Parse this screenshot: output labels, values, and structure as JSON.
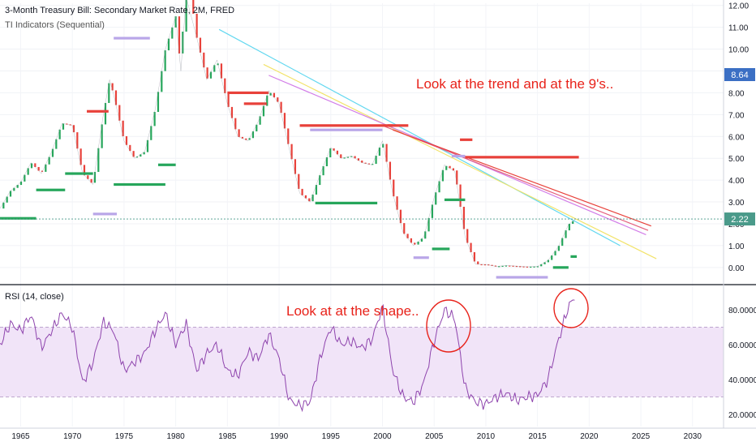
{
  "header": {
    "title": "3-Month Treasury Bill: Secondary Market Rate, 2M, FRED",
    "indicator": "TI Indicators (Sequential)",
    "rsi_title": "RSI (14, close)"
  },
  "annotations": {
    "trend_note": "Look at the trend and at the 9's..",
    "shape_note": "Look at at the shape.."
  },
  "colors": {
    "bull": "#26a65b",
    "bear": "#e8413a",
    "rsi": "#8e44ad",
    "annotation": "#e8221a",
    "price_badge": "#3b6fc4",
    "last_badge": "#4a9a8a"
  },
  "chart_data": [
    {
      "type": "line",
      "title": "3-Month Treasury Bill: Secondary Market Rate, 2M, FRED",
      "xlabel": "",
      "ylabel": "",
      "x_ticks": [
        "1965",
        "1970",
        "1975",
        "1980",
        "1985",
        "1990",
        "1995",
        "2000",
        "2005",
        "2010",
        "2015",
        "2020",
        "2025",
        "2030"
      ],
      "y_ticks": [
        "0.00",
        "1.00",
        "2.00",
        "3.00",
        "4.00",
        "5.00",
        "6.00",
        "7.00",
        "8.00",
        "9.00",
        "10.00",
        "11.00",
        "12.00"
      ],
      "xlim": [
        1963,
        2033
      ],
      "ylim": [
        -0.6,
        12.1
      ],
      "price_label": "8.64",
      "last_value_label": "2.22",
      "series": [
        {
          "x": [
            1963,
            1964,
            1965,
            1966,
            1967,
            1968,
            1969,
            1970,
            1971,
            1972,
            1973,
            1973.6,
            1974,
            1975,
            1976,
            1977,
            1978,
            1979,
            1980,
            1980.5,
            1981,
            1982,
            1983,
            1984,
            1985,
            1986,
            1987,
            1988,
            1989,
            1990,
            1991,
            1992,
            1993,
            1994,
            1995,
            1996,
            1997,
            1998,
            1999,
            2000,
            2001,
            2002,
            2003,
            2004,
            2005,
            2006,
            2007,
            2008,
            2009,
            2010,
            2011,
            2012,
            2013,
            2014,
            2015,
            2016,
            2017,
            2018,
            2018.7
          ],
          "y": [
            2.7,
            3.5,
            3.9,
            4.8,
            4.3,
            5.3,
            6.6,
            6.5,
            4.3,
            3.8,
            7.0,
            8.6,
            7.9,
            5.8,
            5.0,
            5.3,
            7.2,
            10.0,
            11.5,
            9.0,
            14.0,
            10.6,
            8.6,
            9.5,
            7.5,
            6.0,
            5.8,
            6.7,
            8.1,
            7.5,
            5.4,
            3.4,
            3.0,
            4.3,
            5.5,
            5.0,
            5.1,
            4.8,
            4.7,
            5.8,
            3.4,
            1.6,
            1.0,
            1.4,
            3.2,
            4.7,
            4.4,
            1.4,
            0.15,
            0.14,
            0.05,
            0.09,
            0.06,
            0.03,
            0.05,
            0.32,
            0.93,
            1.97,
            2.22
          ]
        }
      ]
    },
    {
      "type": "line",
      "title": "RSI (14, close)",
      "xlabel": "",
      "ylabel": "",
      "y_ticks": [
        "20.0000",
        "40.0000",
        "60.0000",
        "80.0000"
      ],
      "ylim": [
        13,
        93
      ],
      "band": [
        30,
        70
      ],
      "series": [
        {
          "x": [
            1963,
            1964,
            1965,
            1966,
            1967,
            1968,
            1969,
            1970,
            1971,
            1972,
            1973,
            1974,
            1975,
            1976,
            1977,
            1978,
            1979,
            1980,
            1981,
            1982,
            1983,
            1984,
            1985,
            1986,
            1987,
            1988,
            1989,
            1990,
            1991,
            1992,
            1993,
            1994,
            1995,
            1996,
            1997,
            1998,
            1999,
            2000,
            2001,
            2002,
            2003,
            2004,
            2005,
            2006,
            2007,
            2008,
            2009,
            2010,
            2011,
            2012,
            2013,
            2014,
            2015,
            2016,
            2017,
            2018,
            2018.7
          ],
          "y": [
            60,
            72,
            68,
            77,
            58,
            68,
            78,
            70,
            38,
            50,
            73,
            68,
            45,
            50,
            55,
            68,
            78,
            60,
            72,
            45,
            55,
            60,
            45,
            42,
            56,
            52,
            66,
            52,
            28,
            25,
            27,
            53,
            70,
            60,
            62,
            58,
            63,
            82,
            45,
            30,
            27,
            38,
            62,
            80,
            75,
            35,
            27,
            26,
            30,
            32,
            28,
            30,
            31,
            40,
            62,
            82,
            88
          ]
        }
      ]
    }
  ]
}
